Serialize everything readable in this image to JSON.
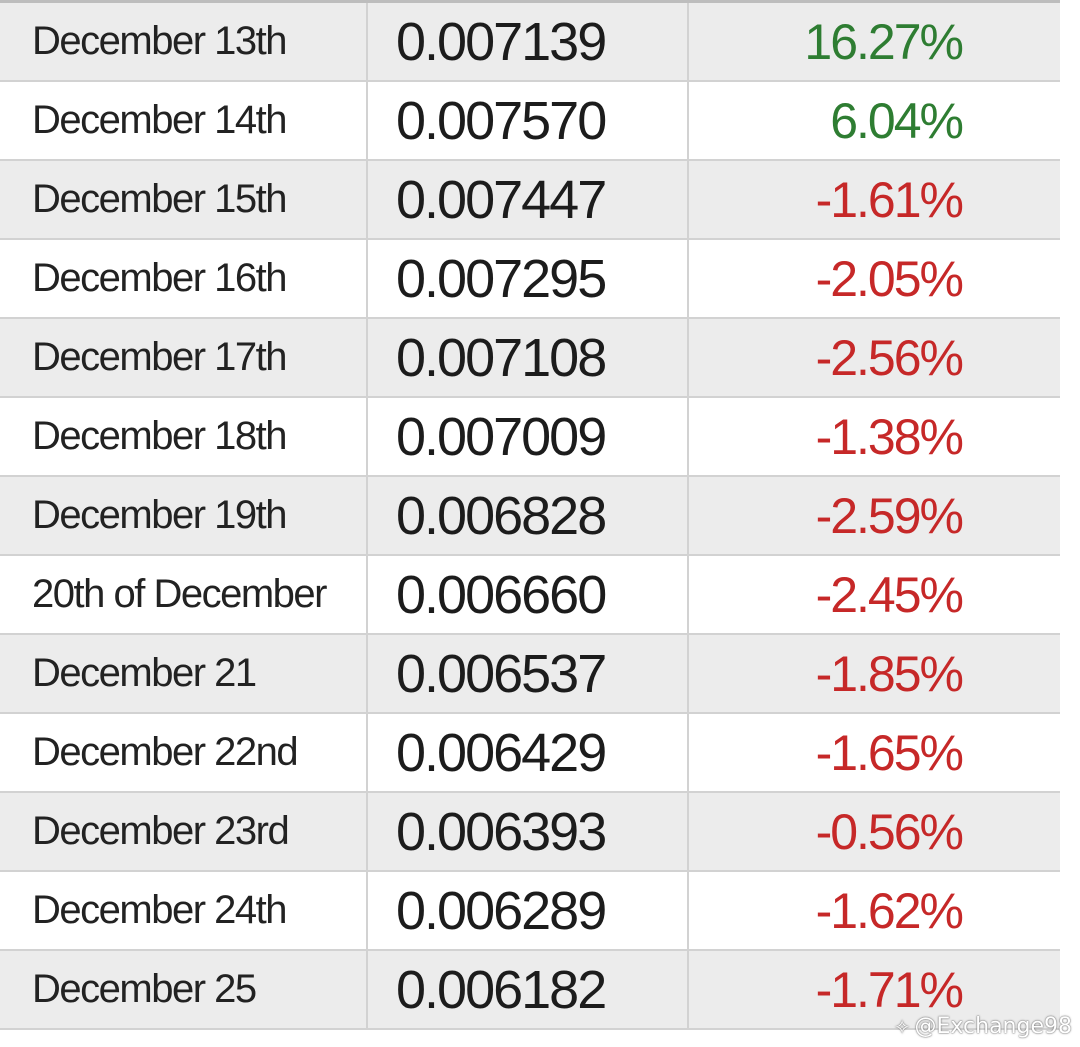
{
  "rows": [
    {
      "date": "December 13th",
      "rate": "0.007139",
      "change": "16.27%",
      "trend": "up"
    },
    {
      "date": "December 14th",
      "rate": "0.007570",
      "change": "6.04%",
      "trend": "up"
    },
    {
      "date": "December 15th",
      "rate": "0.007447",
      "change": "-1.61%",
      "trend": "down"
    },
    {
      "date": "December 16th",
      "rate": "0.007295",
      "change": "-2.05%",
      "trend": "down"
    },
    {
      "date": "December 17th",
      "rate": "0.007108",
      "change": "-2.56%",
      "trend": "down"
    },
    {
      "date": "December 18th",
      "rate": "0.007009",
      "change": "-1.38%",
      "trend": "down"
    },
    {
      "date": "December 19th",
      "rate": "0.006828",
      "change": "-2.59%",
      "trend": "down"
    },
    {
      "date": "20th of December",
      "rate": "0.006660",
      "change": "-2.45%",
      "trend": "down"
    },
    {
      "date": "December 21",
      "rate": "0.006537",
      "change": "-1.85%",
      "trend": "down"
    },
    {
      "date": "December 22nd",
      "rate": "0.006429",
      "change": "-1.65%",
      "trend": "down"
    },
    {
      "date": "December 23rd",
      "rate": "0.006393",
      "change": "-0.56%",
      "trend": "down"
    },
    {
      "date": "December 24th",
      "rate": "0.006289",
      "change": "-1.62%",
      "trend": "down"
    },
    {
      "date": "December 25",
      "rate": "0.006182",
      "change": "-1.71%",
      "trend": "down"
    }
  ],
  "watermark": "@Exchange98",
  "colors": {
    "positive": "#2e7d32",
    "negative": "#c62828"
  }
}
